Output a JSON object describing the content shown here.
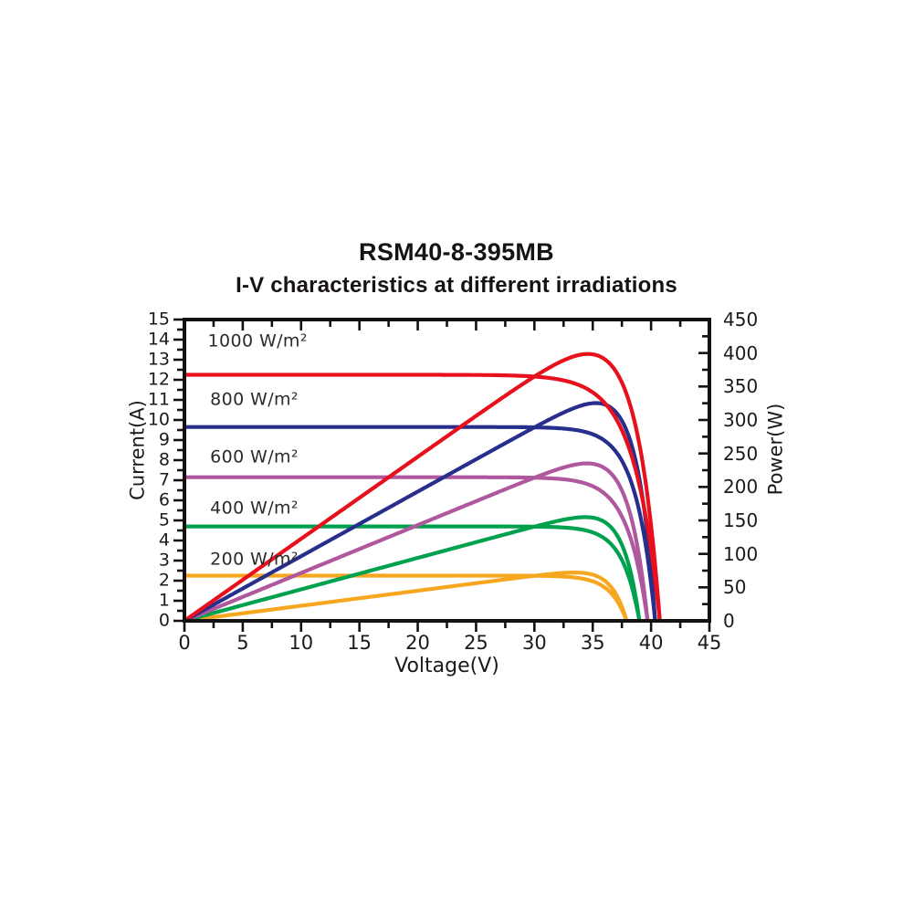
{
  "chart": {
    "title": "RSM40-8-395MB",
    "subtitle": "I-V characteristics at different irradiations"
  },
  "chart_data": {
    "type": "line",
    "title": "RSM40-8-395MB",
    "subtitle": "I-V characteristics at different irradiations",
    "grid": false,
    "legend_position": "in-plot text labels above each curve",
    "curves_per_series": [
      "I-V (current vs voltage, left axis)",
      "P-V (power vs voltage, right axis)"
    ],
    "x_axis": {
      "label": "Voltage(V)",
      "min": 0,
      "max": 45,
      "major_tick_step": 5,
      "minor_tick_step": 2.5
    },
    "y_left_axis": {
      "label": "Current(A)",
      "min": 0,
      "max": 15,
      "major_tick_step": 1,
      "minor_tick_step": 0.5
    },
    "y_right_axis": {
      "label": "Power(W)",
      "min": 0,
      "max": 450,
      "major_tick_step": 50,
      "minor_tick_step": 25
    },
    "axis_color": "#141110",
    "series": [
      {
        "name": "1000 W/m²",
        "color": "#e8101c",
        "isc_A": 12.25,
        "voc_V": 40.75,
        "vmp_V": 33.0,
        "imp_A": 11.9,
        "pmax_W": 393,
        "label_pos": {
          "v": 2.0,
          "i": 13.9
        }
      },
      {
        "name": "800 W/m²",
        "color": "#272e8c",
        "isc_A": 9.65,
        "voc_V": 40.35,
        "vmp_V": 32.9,
        "imp_A": 9.55,
        "pmax_W": 314,
        "label_pos": {
          "v": 2.2,
          "i": 11.0
        }
      },
      {
        "name": "600 W/m²",
        "color": "#af589d",
        "isc_A": 7.15,
        "voc_V": 39.7,
        "vmp_V": 32.9,
        "imp_A": 7.02,
        "pmax_W": 231,
        "label_pos": {
          "v": 2.2,
          "i": 8.15
        }
      },
      {
        "name": "400 W/m²",
        "color": "#00a14e",
        "isc_A": 4.7,
        "voc_V": 39.0,
        "vmp_V": 32.9,
        "imp_A": 4.63,
        "pmax_W": 152,
        "label_pos": {
          "v": 2.2,
          "i": 5.6
        }
      },
      {
        "name": "200 W/m²",
        "color": "#f7a71f",
        "isc_A": 2.25,
        "voc_V": 37.9,
        "vmp_V": 32.6,
        "imp_A": 2.2,
        "pmax_W": 72,
        "label_pos": {
          "v": 2.2,
          "i": 3.05
        }
      }
    ]
  }
}
